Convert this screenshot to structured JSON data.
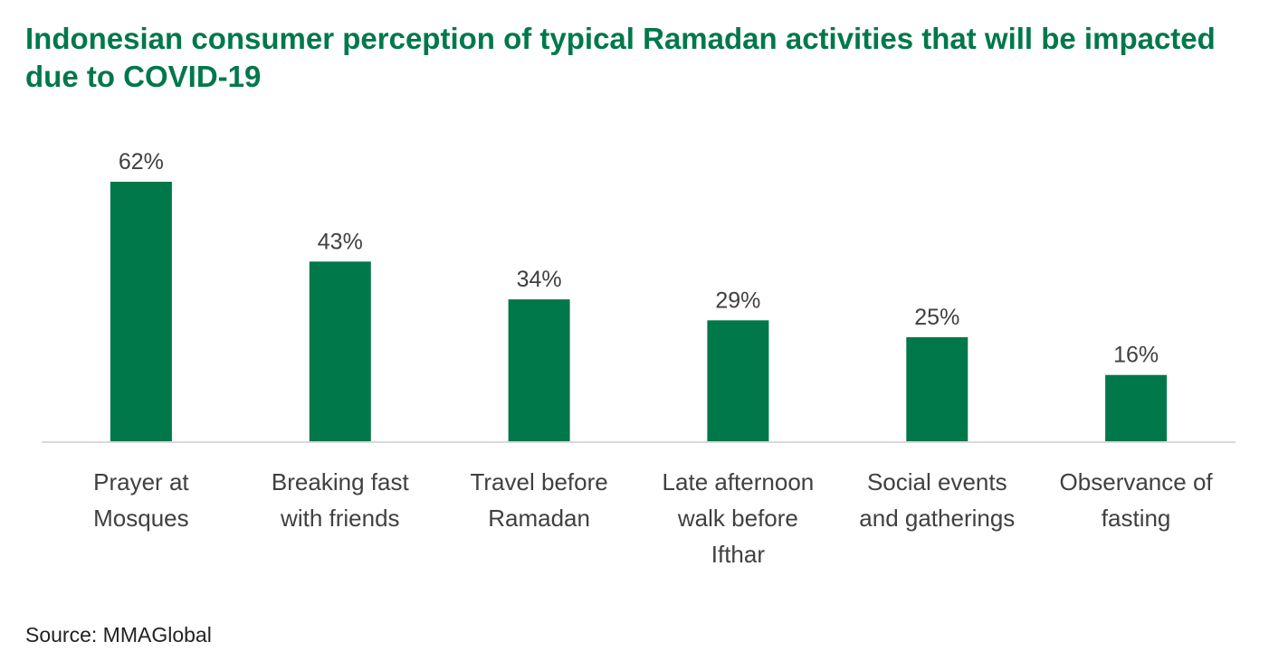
{
  "chart_data": {
    "type": "bar",
    "title": "Indonesian consumer perception of typical Ramadan activities that will be impacted due to COVID-19",
    "categories": [
      [
        "Prayer at",
        "Mosques"
      ],
      [
        "Breaking fast",
        "with friends"
      ],
      [
        "Travel before",
        "Ramadan"
      ],
      [
        "Late afternoon",
        "walk before",
        "Ifthar"
      ],
      [
        "Social events",
        "and gatherings"
      ],
      [
        "Observance of",
        "fasting"
      ]
    ],
    "values": [
      62,
      43,
      34,
      29,
      25,
      16
    ],
    "data_labels": [
      "62%",
      "43%",
      "34%",
      "29%",
      "25%",
      "16%"
    ],
    "xlabel": "",
    "ylabel": "",
    "ylim": [
      0,
      62
    ],
    "grid": false,
    "legend": "none",
    "bar_color": "#00784A",
    "axis_color": "#D9D9D9",
    "label_color": "#404040"
  },
  "source": "Source: MMAGlobal"
}
